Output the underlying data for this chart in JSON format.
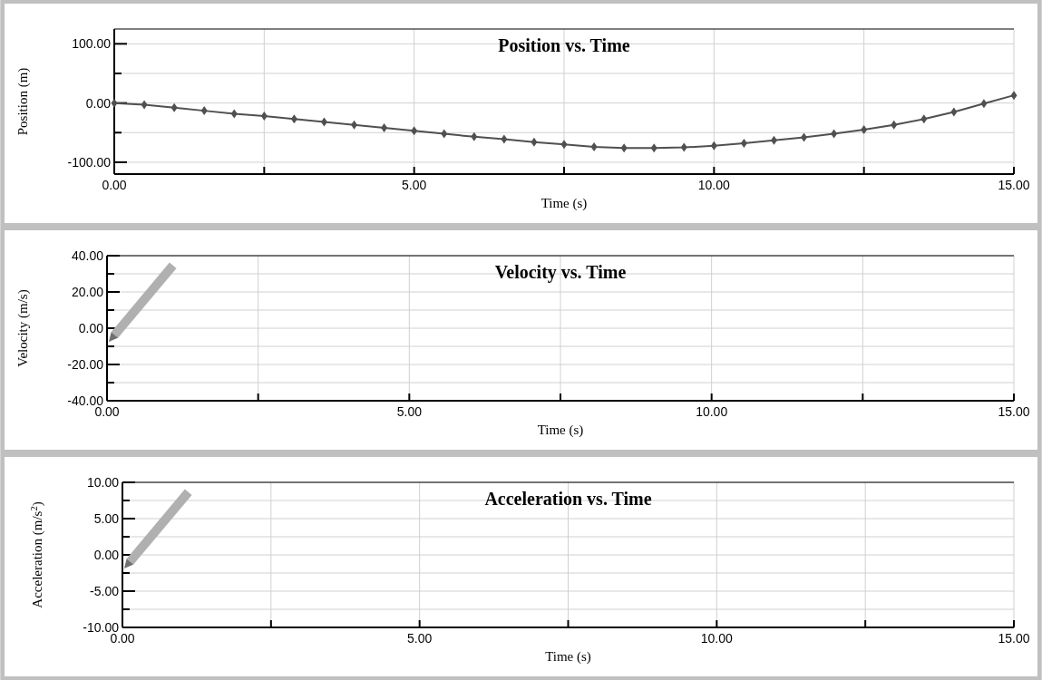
{
  "chart_data": [
    {
      "type": "line",
      "title": "Position vs. Time",
      "xlabel": "Time (s)",
      "ylabel": "Position (m)",
      "xlim": [
        0,
        15
      ],
      "ylim": [
        -120,
        125
      ],
      "xticks": [
        {
          "value": 0,
          "label": "0.00"
        },
        {
          "value": 2.5,
          "label": null
        },
        {
          "value": 5,
          "label": "5.00"
        },
        {
          "value": 7.5,
          "label": null
        },
        {
          "value": 10,
          "label": "10.00"
        },
        {
          "value": 12.5,
          "label": null
        },
        {
          "value": 15,
          "label": "15.00"
        }
      ],
      "yticks": [
        {
          "value": -100,
          "label": "-100.00"
        },
        {
          "value": -50,
          "label": null
        },
        {
          "value": 0,
          "label": "0.00"
        },
        {
          "value": 50,
          "label": null
        },
        {
          "value": 100,
          "label": "100.00"
        }
      ],
      "grid": true,
      "marker": "diamond",
      "series": [
        {
          "color": "#505050",
          "x": [
            0,
            0.5,
            1,
            1.5,
            2,
            2.5,
            3,
            3.5,
            4,
            4.5,
            5,
            5.5,
            6,
            6.5,
            7,
            7.5,
            8,
            8.5,
            9,
            9.5,
            10,
            10.5,
            11,
            11.5,
            12,
            12.5,
            13,
            13.5,
            14,
            14.5,
            15
          ],
          "values": [
            0,
            -3,
            -8,
            -13,
            -18,
            -22,
            -27,
            -32,
            -37,
            -42,
            -47,
            -52,
            -57,
            -61,
            -66,
            -70,
            -74,
            -76,
            -76,
            -75,
            -72,
            -68,
            -63,
            -58,
            -52,
            -45,
            -37,
            -27,
            -15,
            -1,
            13
          ]
        }
      ]
    },
    {
      "type": "line",
      "title": "Velocity vs. Time",
      "xlabel": "Time (s)",
      "ylabel": "Velocity (m/s)",
      "xlim": [
        0,
        15
      ],
      "ylim": [
        -40,
        40
      ],
      "xticks": [
        {
          "value": 0,
          "label": "0.00"
        },
        {
          "value": 2.5,
          "label": null
        },
        {
          "value": 5,
          "label": "5.00"
        },
        {
          "value": 7.5,
          "label": null
        },
        {
          "value": 10,
          "label": "10.00"
        },
        {
          "value": 12.5,
          "label": null
        },
        {
          "value": 15,
          "label": "15.00"
        }
      ],
      "yticks": [
        {
          "value": -40,
          "label": "-40.00"
        },
        {
          "value": -30,
          "label": null
        },
        {
          "value": -20,
          "label": "-20.00"
        },
        {
          "value": -10,
          "label": null
        },
        {
          "value": 0,
          "label": "0.00"
        },
        {
          "value": 10,
          "label": null
        },
        {
          "value": 20,
          "label": "20.00"
        },
        {
          "value": 30,
          "label": null
        },
        {
          "value": 40,
          "label": "40.00"
        }
      ],
      "grid": true
    },
    {
      "type": "line",
      "title": "Acceleration vs. Time",
      "xlabel": "Time (s)",
      "ylabel": "Acceleration (m/s$^{2}$)",
      "xlim": [
        0,
        15
      ],
      "ylim": [
        -10,
        10
      ],
      "xticks": [
        {
          "value": 0,
          "label": "0.00"
        },
        {
          "value": 2.5,
          "label": null
        },
        {
          "value": 5,
          "label": "5.00"
        },
        {
          "value": 7.5,
          "label": null
        },
        {
          "value": 10,
          "label": "10.00"
        },
        {
          "value": 12.5,
          "label": null
        },
        {
          "value": 15,
          "label": "15.00"
        }
      ],
      "yticks": [
        {
          "value": -10,
          "label": "-10.00"
        },
        {
          "value": -7.5,
          "label": null
        },
        {
          "value": -5,
          "label": "-5.00"
        },
        {
          "value": -2.5,
          "label": null
        },
        {
          "value": 0,
          "label": "0.00"
        },
        {
          "value": 2.5,
          "label": null
        },
        {
          "value": 5,
          "label": "5.00"
        },
        {
          "value": 7.5,
          "label": null
        },
        {
          "value": 10,
          "label": "10.00"
        }
      ],
      "grid": true
    }
  ]
}
